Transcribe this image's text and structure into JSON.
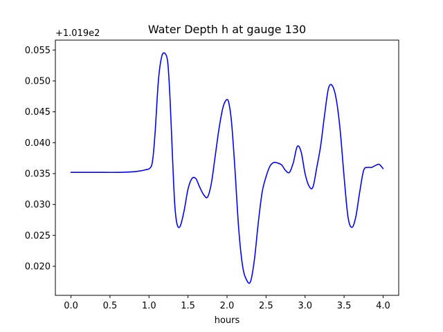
{
  "chart_data": {
    "type": "line",
    "title": "Water Depth h at gauge 130",
    "xlabel": "hours",
    "ylabel": "",
    "y_offset_label": "+1.019e2",
    "xlim": [
      -0.2,
      4.2
    ],
    "ylim": [
      0.0153,
      0.0566
    ],
    "x_ticks": [
      0.0,
      0.5,
      1.0,
      1.5,
      2.0,
      2.5,
      3.0,
      3.5,
      4.0
    ],
    "x_tick_labels": [
      "0.0",
      "0.5",
      "1.0",
      "1.5",
      "2.0",
      "2.5",
      "3.0",
      "3.5",
      "4.0"
    ],
    "y_ticks": [
      0.02,
      0.025,
      0.03,
      0.035,
      0.04,
      0.045,
      0.05,
      0.055
    ],
    "y_tick_labels": [
      "0.020",
      "0.025",
      "0.030",
      "0.035",
      "0.040",
      "0.045",
      "0.050",
      "0.055"
    ],
    "grid": false,
    "series": [
      {
        "color": "#0000ff",
        "x": [
          0.0,
          0.3,
          0.6,
          0.8,
          0.95,
          1.02,
          1.05,
          1.08,
          1.12,
          1.16,
          1.2,
          1.24,
          1.27,
          1.3,
          1.33,
          1.36,
          1.4,
          1.45,
          1.5,
          1.55,
          1.6,
          1.65,
          1.7,
          1.75,
          1.8,
          1.85,
          1.9,
          1.95,
          2.0,
          2.03,
          2.06,
          2.1,
          2.15,
          2.2,
          2.25,
          2.3,
          2.35,
          2.4,
          2.45,
          2.5,
          2.55,
          2.6,
          2.65,
          2.7,
          2.75,
          2.8,
          2.85,
          2.9,
          2.95,
          3.0,
          3.05,
          3.1,
          3.15,
          3.2,
          3.25,
          3.3,
          3.35,
          3.4,
          3.45,
          3.5,
          3.55,
          3.6,
          3.65,
          3.7,
          3.75,
          3.8,
          3.85,
          3.9,
          3.95,
          4.0
        ],
        "y": [
          0.0352,
          0.0352,
          0.0352,
          0.0353,
          0.0356,
          0.036,
          0.0375,
          0.042,
          0.05,
          0.0538,
          0.0545,
          0.053,
          0.047,
          0.038,
          0.03,
          0.0268,
          0.0265,
          0.029,
          0.0325,
          0.0342,
          0.0342,
          0.0328,
          0.0316,
          0.0312,
          0.0335,
          0.038,
          0.0425,
          0.0458,
          0.047,
          0.046,
          0.043,
          0.036,
          0.026,
          0.02,
          0.0178,
          0.0175,
          0.021,
          0.027,
          0.032,
          0.0345,
          0.0362,
          0.0368,
          0.0367,
          0.0364,
          0.0355,
          0.0352,
          0.0368,
          0.0394,
          0.0385,
          0.035,
          0.033,
          0.0328,
          0.036,
          0.0395,
          0.0445,
          0.0488,
          0.0492,
          0.047,
          0.042,
          0.0345,
          0.028,
          0.0263,
          0.028,
          0.032,
          0.0355,
          0.036,
          0.036,
          0.0363,
          0.0365,
          0.0358
        ]
      }
    ]
  }
}
